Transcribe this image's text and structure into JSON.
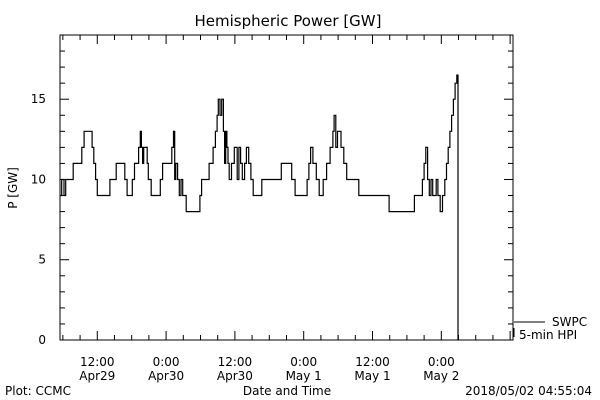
{
  "chart_data": {
    "type": "line",
    "title": "Hemispheric Power [GW]",
    "ylabel": "P [GW]",
    "xlabel": "Date and Time",
    "ylim": [
      0,
      19
    ],
    "xlim_hours": [
      -18.5,
      60.5
    ],
    "yticks": [
      {
        "value": 0,
        "label": "0"
      },
      {
        "value": 5,
        "label": "5"
      },
      {
        "value": 10,
        "label": "10"
      },
      {
        "value": 15,
        "label": "15"
      }
    ],
    "xticks": [
      {
        "hours": -12,
        "time": "12:00",
        "date": "Apr29"
      },
      {
        "hours": 0,
        "time": "0:00",
        "date": "Apr30"
      },
      {
        "hours": 12,
        "time": "12:00",
        "date": "Apr30"
      },
      {
        "hours": 24,
        "time": "0:00",
        "date": "May 1"
      },
      {
        "hours": 36,
        "time": "12:00",
        "date": "May 1"
      },
      {
        "hours": 48,
        "time": "0:00",
        "date": "May 2"
      }
    ],
    "legend": {
      "placement": "bottom-right, outside plot",
      "entries": [
        "SWPC",
        "5-min HPI"
      ]
    },
    "footer": {
      "left": "Plot: CCMC",
      "right": "2018/05/02 04:55:04"
    },
    "series": [
      {
        "name": "SWPC",
        "style": "step",
        "color": "#000000",
        "points": [
          [
            -18.5,
            9
          ],
          [
            -18.2,
            10
          ],
          [
            -17.8,
            9
          ],
          [
            -17.5,
            10
          ],
          [
            -16.5,
            10
          ],
          [
            -16.2,
            11
          ],
          [
            -15,
            11
          ],
          [
            -14.7,
            12
          ],
          [
            -14.3,
            13
          ],
          [
            -13.2,
            13
          ],
          [
            -12.9,
            12
          ],
          [
            -12.6,
            11
          ],
          [
            -12.3,
            10
          ],
          [
            -12,
            9
          ],
          [
            -10,
            9
          ],
          [
            -9.8,
            10
          ],
          [
            -9,
            10
          ],
          [
            -8.7,
            11
          ],
          [
            -7.5,
            11
          ],
          [
            -7.2,
            10
          ],
          [
            -6.8,
            9
          ],
          [
            -6.2,
            9
          ],
          [
            -5.9,
            10
          ],
          [
            -5.5,
            11
          ],
          [
            -4.8,
            12
          ],
          [
            -4.5,
            13
          ],
          [
            -4.3,
            12
          ],
          [
            -4.1,
            11
          ],
          [
            -3.9,
            12
          ],
          [
            -3.5,
            12
          ],
          [
            -3.3,
            11
          ],
          [
            -3.1,
            10
          ],
          [
            -2.9,
            10
          ],
          [
            -2.6,
            9
          ],
          [
            -1.2,
            9
          ],
          [
            -1.0,
            10
          ],
          [
            -0.6,
            11
          ],
          [
            0.8,
            11
          ],
          [
            1,
            12
          ],
          [
            1.3,
            13
          ],
          [
            1.5,
            10
          ],
          [
            1.7,
            11
          ],
          [
            2,
            10
          ],
          [
            2.3,
            9
          ],
          [
            2.6,
            10
          ],
          [
            2.9,
            9
          ],
          [
            3.2,
            9
          ],
          [
            3.5,
            8
          ],
          [
            5.6,
            8
          ],
          [
            5.9,
            9
          ],
          [
            6.2,
            10
          ],
          [
            7.2,
            10
          ],
          [
            7.5,
            11
          ],
          [
            8.2,
            12
          ],
          [
            8.6,
            13
          ],
          [
            8.9,
            14
          ],
          [
            9.1,
            15
          ],
          [
            9.4,
            14
          ],
          [
            9.7,
            15
          ],
          [
            10,
            13
          ],
          [
            10.2,
            11
          ],
          [
            10.4,
            13
          ],
          [
            10.6,
            12
          ],
          [
            10.8,
            11
          ],
          [
            11,
            10
          ],
          [
            11.4,
            11
          ],
          [
            11.9,
            12
          ],
          [
            12.4,
            10
          ],
          [
            12.7,
            12
          ],
          [
            13,
            11
          ],
          [
            13.3,
            10
          ],
          [
            13.7,
            11
          ],
          [
            14,
            12
          ],
          [
            14.4,
            11
          ],
          [
            14.8,
            10
          ],
          [
            15.2,
            9
          ],
          [
            16.4,
            9
          ],
          [
            16.7,
            10
          ],
          [
            19.8,
            10
          ],
          [
            20.1,
            11
          ],
          [
            21.6,
            11
          ],
          [
            21.9,
            10
          ],
          [
            22.2,
            10
          ],
          [
            22.5,
            9
          ],
          [
            24.3,
            9
          ],
          [
            24.6,
            10
          ],
          [
            24.9,
            11
          ],
          [
            25.2,
            12
          ],
          [
            25.6,
            11
          ],
          [
            26.2,
            10
          ],
          [
            26.7,
            9
          ],
          [
            27.4,
            10
          ],
          [
            28,
            11
          ],
          [
            28.6,
            12
          ],
          [
            29.1,
            13
          ],
          [
            29.3,
            14
          ],
          [
            29.6,
            12
          ],
          [
            29.9,
            13
          ],
          [
            30.5,
            12
          ],
          [
            31,
            11
          ],
          [
            31.5,
            10
          ],
          [
            33.3,
            10
          ],
          [
            33.6,
            9
          ],
          [
            38.6,
            9
          ],
          [
            38.9,
            8
          ],
          [
            43,
            8
          ],
          [
            43.3,
            9
          ],
          [
            44.4,
            9
          ],
          [
            44.7,
            10
          ],
          [
            45,
            11
          ],
          [
            45.3,
            12
          ],
          [
            45.6,
            10
          ],
          [
            45.9,
            9
          ],
          [
            46.2,
            10
          ],
          [
            46.5,
            9
          ],
          [
            46.8,
            9
          ],
          [
            47.1,
            10
          ],
          [
            47.4,
            9
          ],
          [
            47.8,
            8
          ],
          [
            48.2,
            9
          ],
          [
            48.6,
            10
          ],
          [
            48.9,
            11
          ],
          [
            49.2,
            12
          ],
          [
            49.5,
            13
          ],
          [
            49.8,
            14
          ],
          [
            50.1,
            15
          ],
          [
            50.4,
            16
          ],
          [
            50.7,
            16.5
          ],
          [
            50.9,
            16.5
          ],
          [
            50.9,
            0
          ]
        ]
      }
    ]
  }
}
